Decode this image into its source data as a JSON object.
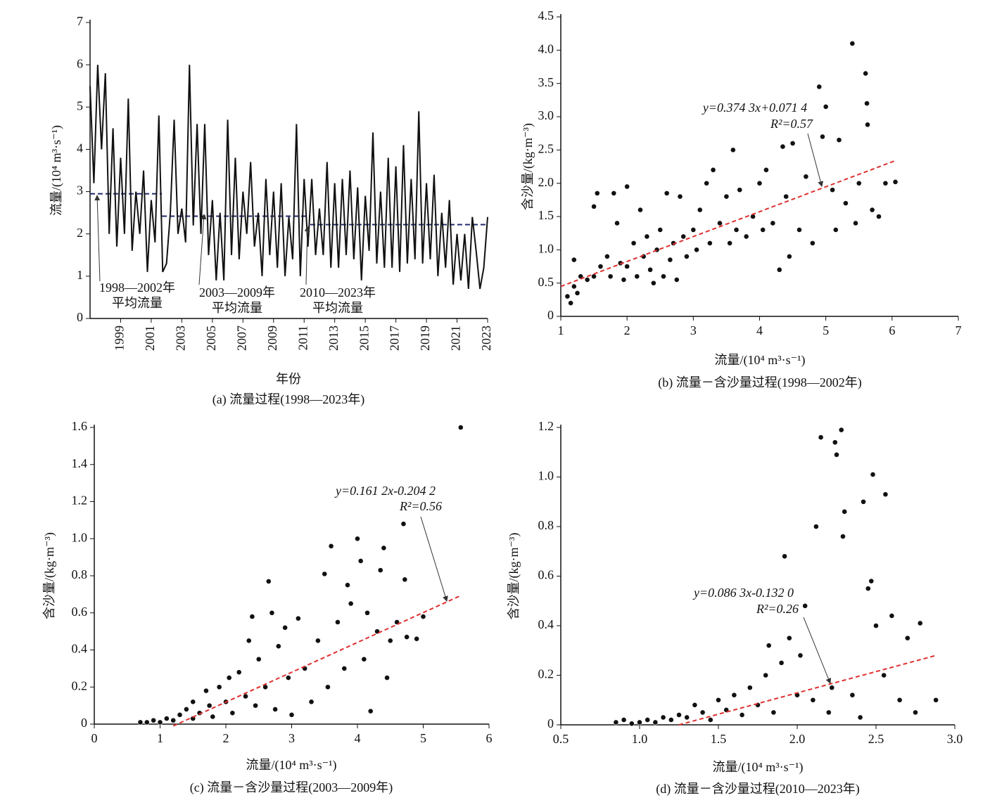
{
  "chart_data": [
    {
      "type": "line",
      "caption": "(a) 流量过程(1998—2023年)",
      "xlabel": "年份",
      "ylabel": "流量/(10⁴ m³·s⁻¹)",
      "xlim": [
        1997,
        2023
      ],
      "ylim": [
        0,
        7
      ],
      "xticks": [
        1999,
        2001,
        2003,
        2005,
        2007,
        2009,
        2011,
        2013,
        2015,
        2017,
        2019,
        2021,
        2023
      ],
      "yticks": [
        0,
        1,
        2,
        3,
        4,
        5,
        6,
        7
      ],
      "x": [
        1997,
        1997.25,
        1997.5,
        1997.75,
        1998,
        1998.25,
        1998.5,
        1998.75,
        1999,
        1999.25,
        1999.5,
        1999.75,
        2000,
        2000.25,
        2000.5,
        2000.75,
        2001,
        2001.25,
        2001.5,
        2001.75,
        2002,
        2002.25,
        2002.5,
        2002.75,
        2003,
        2003.25,
        2003.5,
        2003.75,
        2004,
        2004.25,
        2004.5,
        2004.75,
        2005,
        2005.25,
        2005.5,
        2005.75,
        2006,
        2006.25,
        2006.5,
        2006.75,
        2007,
        2007.25,
        2007.5,
        2007.75,
        2008,
        2008.25,
        2008.5,
        2008.75,
        2009,
        2009.25,
        2009.5,
        2009.75,
        2010,
        2010.25,
        2010.5,
        2010.75,
        2011,
        2011.25,
        2011.5,
        2011.75,
        2012,
        2012.25,
        2012.5,
        2012.75,
        2013,
        2013.25,
        2013.5,
        2013.75,
        2014,
        2014.25,
        2014.5,
        2014.75,
        2015,
        2015.25,
        2015.5,
        2015.75,
        2016,
        2016.25,
        2016.5,
        2016.75,
        2017,
        2017.25,
        2017.5,
        2017.75,
        2018,
        2018.25,
        2018.5,
        2018.75,
        2019,
        2019.25,
        2019.5,
        2019.75,
        2020,
        2020.25,
        2020.5,
        2020.75,
        2021,
        2021.25,
        2021.5,
        2021.75,
        2022,
        2022.25,
        2022.5,
        2022.75,
        2023
      ],
      "series": [
        {
          "color": "#111111",
          "values": [
            5.5,
            3.2,
            6.0,
            4.0,
            5.8,
            2.0,
            4.5,
            1.7,
            3.8,
            2.0,
            5.2,
            1.6,
            3.0,
            2.0,
            3.5,
            1.1,
            2.8,
            1.8,
            4.8,
            1.1,
            1.3,
            2.5,
            4.7,
            2.0,
            2.6,
            1.8,
            6.0,
            2.2,
            4.6,
            2.0,
            4.6,
            1.5,
            2.8,
            0.9,
            2.5,
            0.9,
            4.7,
            1.5,
            3.8,
            1.4,
            3.0,
            2.0,
            3.7,
            1.7,
            2.5,
            1.0,
            3.3,
            1.5,
            3.0,
            1.2,
            3.2,
            1.0,
            2.4,
            1.4,
            4.6,
            1.0,
            3.3,
            1.7,
            3.3,
            1.5,
            2.6,
            1.5,
            3.7,
            1.2,
            3.2,
            1.2,
            3.3,
            1.5,
            3.5,
            1.4,
            3.1,
            0.9,
            2.9,
            1.6,
            4.4,
            1.3,
            3.0,
            1.2,
            3.8,
            1.2,
            3.6,
            1.1,
            4.1,
            1.3,
            3.3,
            1.4,
            4.9,
            1.3,
            3.2,
            1.4,
            3.4,
            1.0,
            2.5,
            1.2,
            2.8,
            0.8,
            2.0,
            0.9,
            2.0,
            0.7,
            2.4,
            1.6,
            0.7,
            1.2,
            2.4
          ]
        }
      ],
      "mean_lines": [
        {
          "color": "#1f2a6b",
          "x": [
            1997,
            2001.7
          ],
          "values": [
            2.95,
            2.95
          ]
        },
        {
          "color": "#1f2a6b",
          "x": [
            2001.7,
            2011.4
          ],
          "values": [
            2.42,
            2.42
          ]
        },
        {
          "color": "#1f2a6b",
          "x": [
            2011.4,
            2023
          ],
          "values": [
            2.22,
            2.22
          ]
        }
      ],
      "annotations": [
        [
          "1998—2002年",
          "平均流量"
        ],
        [
          "2003—2009年",
          "平均流量"
        ],
        [
          "2010—2023年",
          "平均流量"
        ]
      ]
    },
    {
      "type": "scatter",
      "caption": "(b) 流量－含沙量过程(1998—2002年)",
      "xlabel": "流量/(10⁴ m³·s⁻¹)",
      "ylabel": "含沙量/(kg·m⁻³)",
      "xlim": [
        1,
        7
      ],
      "ylim": [
        0,
        4.5
      ],
      "xticks": [
        1,
        2,
        3,
        4,
        5,
        6,
        7
      ],
      "yticks": [
        0,
        0.5,
        {
          "value": 1,
          "label": "1.0"
        },
        1.5,
        {
          "value": 2,
          "label": "2.0"
        },
        2.5,
        {
          "value": 3,
          "label": "3.0"
        },
        3.5,
        {
          "value": 4,
          "label": "4.0"
        },
        4.5
      ],
      "equation": "y=0.374 3x+0.071 4",
      "r2": "R²=0.57",
      "trend": {
        "color": "#e03030",
        "x": [
          1,
          6.05
        ],
        "values": [
          0.45,
          2.34
        ]
      },
      "series": [
        {
          "color": "#111111",
          "x": [
            1.1,
            1.15,
            1.2,
            1.25,
            1.3,
            1.2,
            1.4,
            1.5,
            1.55,
            1.5,
            1.6,
            1.7,
            1.75,
            1.8,
            1.85,
            1.9,
            1.95,
            2.0,
            2.0,
            2.1,
            2.15,
            2.2,
            2.25,
            2.3,
            2.35,
            2.4,
            2.45,
            2.5,
            2.55,
            2.6,
            2.65,
            2.7,
            2.75,
            2.8,
            2.85,
            2.9,
            3.0,
            3.05,
            3.1,
            3.2,
            3.25,
            3.3,
            3.4,
            3.5,
            3.55,
            3.6,
            3.65,
            3.7,
            3.8,
            3.9,
            4.0,
            4.05,
            4.1,
            4.2,
            4.3,
            4.35,
            4.4,
            4.45,
            4.5,
            4.6,
            4.7,
            4.8,
            4.9,
            5.0,
            4.95,
            5.1,
            5.15,
            5.2,
            5.3,
            5.4,
            5.45,
            5.5,
            5.6,
            5.62,
            5.63,
            5.7,
            5.8,
            5.9,
            6.05
          ],
          "values": [
            0.3,
            0.2,
            0.45,
            0.35,
            0.6,
            0.85,
            0.55,
            0.6,
            1.85,
            1.65,
            0.75,
            0.9,
            0.6,
            1.85,
            1.4,
            0.8,
            0.55,
            1.95,
            0.75,
            1.1,
            0.6,
            1.6,
            0.9,
            1.2,
            0.7,
            0.5,
            1.0,
            1.3,
            0.6,
            1.85,
            0.85,
            1.1,
            0.55,
            1.8,
            1.2,
            0.9,
            1.3,
            1.0,
            1.6,
            2.0,
            1.1,
            2.2,
            1.4,
            1.8,
            1.1,
            2.5,
            1.3,
            1.9,
            1.2,
            1.5,
            2.0,
            1.3,
            2.2,
            1.4,
            0.7,
            2.55,
            1.8,
            0.9,
            2.6,
            1.3,
            2.1,
            1.1,
            3.45,
            3.15,
            2.7,
            1.9,
            1.3,
            2.65,
            1.7,
            4.1,
            1.4,
            2.0,
            3.65,
            3.2,
            2.88,
            1.6,
            1.5,
            2.0,
            2.02
          ]
        }
      ]
    },
    {
      "type": "scatter",
      "caption": "(c) 流量－含沙量过程(2003—2009年)",
      "xlabel": "流量/(10⁴ m³·s⁻¹)",
      "ylabel": "含沙量/(kg·m⁻³)",
      "xlim": [
        0,
        6
      ],
      "ylim": [
        0,
        1.6
      ],
      "xticks": [
        0,
        1,
        2,
        3,
        4,
        5,
        6
      ],
      "yticks": [
        0,
        0.2,
        0.4,
        0.6,
        0.8,
        {
          "value": 1,
          "label": "1.0"
        },
        1.2,
        1.4,
        1.6
      ],
      "equation": "y=0.161 2x-0.204 2",
      "r2": "R²=0.56",
      "trend": {
        "color": "#e03030",
        "x": [
          1.2,
          5.55
        ],
        "values": [
          -0.01,
          0.69
        ]
      },
      "series": [
        {
          "color": "#111111",
          "x": [
            0.7,
            0.8,
            0.9,
            1.0,
            1.1,
            1.2,
            1.3,
            1.4,
            1.5,
            1.5,
            1.6,
            1.7,
            1.75,
            1.8,
            1.9,
            2.0,
            2.05,
            2.1,
            2.2,
            2.3,
            2.35,
            2.4,
            2.45,
            2.5,
            2.6,
            2.65,
            2.7,
            2.75,
            2.8,
            2.9,
            2.95,
            3.0,
            3.1,
            3.2,
            3.3,
            3.4,
            3.5,
            3.55,
            3.6,
            3.7,
            3.8,
            3.85,
            3.9,
            4.0,
            4.05,
            4.1,
            4.15,
            4.2,
            4.3,
            4.35,
            4.4,
            4.45,
            4.5,
            4.6,
            4.7,
            4.72,
            4.75,
            4.9,
            5.0,
            5.57
          ],
          "values": [
            0.01,
            0.01,
            0.02,
            0.01,
            0.03,
            0.02,
            0.05,
            0.08,
            0.12,
            0.03,
            0.06,
            0.18,
            0.1,
            0.04,
            0.2,
            0.12,
            0.25,
            0.06,
            0.28,
            0.15,
            0.45,
            0.58,
            0.1,
            0.35,
            0.2,
            0.77,
            0.6,
            0.08,
            0.42,
            0.52,
            0.25,
            0.05,
            0.57,
            0.3,
            0.12,
            0.45,
            0.81,
            0.2,
            0.96,
            0.55,
            0.3,
            0.75,
            0.65,
            1.0,
            0.88,
            0.35,
            0.6,
            0.07,
            0.5,
            0.83,
            0.95,
            0.25,
            0.45,
            0.55,
            1.08,
            0.78,
            0.47,
            0.46,
            0.58,
            1.6
          ]
        }
      ]
    },
    {
      "type": "scatter",
      "caption": "(d) 流量－含沙量过程(2010—2023年)",
      "xlabel": "流量/(10⁴ m³·s⁻¹)",
      "ylabel": "含沙量/(kg·m⁻³)",
      "xlim": [
        0.5,
        3
      ],
      "ylim": [
        0,
        1.2
      ],
      "xticks": [
        0.5,
        {
          "value": 1,
          "label": "1.0"
        },
        1.5,
        {
          "value": 2,
          "label": "2.0"
        },
        2.5,
        {
          "value": 3,
          "label": "3.0"
        }
      ],
      "yticks": [
        0,
        0.2,
        0.4,
        0.6,
        0.8,
        {
          "value": 1,
          "label": "1.0"
        },
        1.2
      ],
      "equation": "y=0.086 3x-0.132 0",
      "r2": "R²=0.26",
      "trend": {
        "color": "#e03030",
        "x": [
          1.25,
          2.88
        ],
        "values": [
          0,
          0.28
        ]
      },
      "series": [
        {
          "color": "#111111",
          "x": [
            0.85,
            0.9,
            0.95,
            1.0,
            1.05,
            1.1,
            1.15,
            1.2,
            1.25,
            1.3,
            1.35,
            1.4,
            1.45,
            1.5,
            1.55,
            1.6,
            1.65,
            1.7,
            1.75,
            1.8,
            1.82,
            1.85,
            1.9,
            1.92,
            1.95,
            2.0,
            2.02,
            2.05,
            2.1,
            2.12,
            2.15,
            2.2,
            2.22,
            2.24,
            2.25,
            2.28,
            2.29,
            2.3,
            2.35,
            2.4,
            2.42,
            2.45,
            2.47,
            2.48,
            2.5,
            2.55,
            2.56,
            2.6,
            2.65,
            2.7,
            2.75,
            2.78,
            2.88
          ],
          "values": [
            0.01,
            0.02,
            0.005,
            0.01,
            0.02,
            0.01,
            0.03,
            0.02,
            0.04,
            0.03,
            0.08,
            0.05,
            0.02,
            0.1,
            0.06,
            0.12,
            0.04,
            0.15,
            0.08,
            0.2,
            0.32,
            0.05,
            0.25,
            0.68,
            0.35,
            0.12,
            0.28,
            0.48,
            0.1,
            0.8,
            1.16,
            0.05,
            0.15,
            1.14,
            1.09,
            1.19,
            0.76,
            0.86,
            0.12,
            0.03,
            0.9,
            0.55,
            0.58,
            1.01,
            0.4,
            0.2,
            0.93,
            0.44,
            0.1,
            0.35,
            0.05,
            0.41,
            0.1
          ]
        }
      ]
    }
  ]
}
